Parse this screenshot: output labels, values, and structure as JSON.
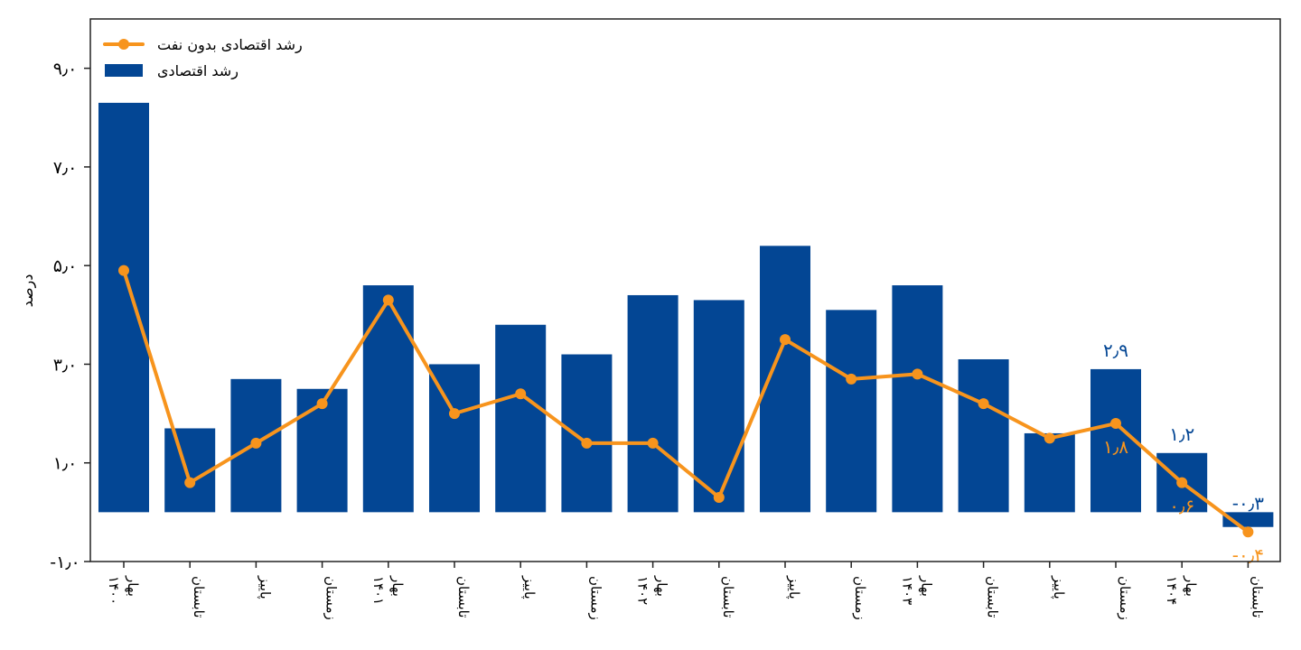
{
  "chart_data": {
    "type": "bar",
    "title": "",
    "xlabel": "",
    "ylabel": "درصد",
    "ylim": [
      -1.0,
      10.0
    ],
    "yticks": [
      -1.0,
      1.0,
      3.0,
      5.0,
      7.0,
      9.0
    ],
    "ytick_labels": [
      "-۱٫۰",
      "۱٫۰",
      "۳٫۰",
      "۵٫۰",
      "۷٫۰",
      "۹٫۰"
    ],
    "grid": false,
    "legend_position": "top-left",
    "categories": [
      "بهار",
      "تابستان",
      "پاییز",
      "زمستان",
      "بهار",
      "تابستان",
      "پاییز",
      "زمستان",
      "بهار",
      "تابستان",
      "پاییز",
      "زمستان",
      "بهار",
      "تابستان",
      "پاییز",
      "زمستان",
      "بهار",
      "تابستان"
    ],
    "years": [
      {
        "label": "۱۴۰۰",
        "index": 0
      },
      {
        "label": "۱۴۰۱",
        "index": 4
      },
      {
        "label": "۱۴۰۲",
        "index": 8
      },
      {
        "label": "۱۴۰۳",
        "index": 12
      },
      {
        "label": "۱۴۰۴",
        "index": 16
      }
    ],
    "series": [
      {
        "name": "رشد اقتصادی",
        "kind": "bar",
        "color": "#034694",
        "values": [
          8.3,
          1.7,
          2.7,
          2.5,
          4.6,
          3.0,
          3.8,
          3.2,
          4.4,
          4.3,
          5.4,
          4.1,
          4.6,
          3.1,
          1.6,
          2.9,
          1.2,
          -0.3
        ]
      },
      {
        "name": "رشد اقتصادی بدون نفت",
        "kind": "line",
        "color": "#F7941D",
        "values": [
          4.9,
          0.6,
          1.4,
          2.2,
          4.3,
          2.0,
          2.4,
          1.4,
          1.4,
          0.3,
          3.5,
          2.7,
          2.8,
          2.2,
          1.5,
          1.8,
          0.6,
          -0.4
        ]
      }
    ],
    "annotations": [
      {
        "series": 0,
        "index": 15,
        "text": "۲٫۹"
      },
      {
        "series": 0,
        "index": 16,
        "text": "۱٫۲"
      },
      {
        "series": 0,
        "index": 17,
        "text": "-۰٫۳"
      },
      {
        "series": 1,
        "index": 15,
        "text": "۱٫۸"
      },
      {
        "series": 1,
        "index": 16,
        "text": "۰٫۶"
      },
      {
        "series": 1,
        "index": 17,
        "text": "-۰٫۴"
      }
    ]
  }
}
